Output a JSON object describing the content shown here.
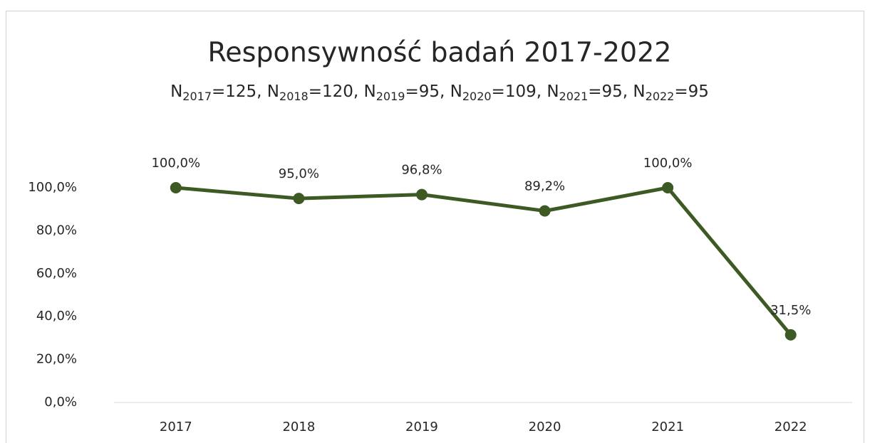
{
  "chart_data": {
    "type": "line",
    "title": "Responsywność badań 2017-2022",
    "subtitle": [
      {
        "text": "N"
      },
      {
        "sub": "2017"
      },
      {
        "text": "=125, N"
      },
      {
        "sub": "2018"
      },
      {
        "text": "=120, N"
      },
      {
        "sub": "2019"
      },
      {
        "text": "=95, N"
      },
      {
        "sub": "2020"
      },
      {
        "text": "=109, N"
      },
      {
        "sub": "2021"
      },
      {
        "text": "=95, N"
      },
      {
        "sub": "2022"
      },
      {
        "text": "=95"
      }
    ],
    "categories": [
      "2017",
      "2018",
      "2019",
      "2020",
      "2021",
      "2022"
    ],
    "series": [
      {
        "color": "#3d5a24",
        "values": [
          100,
          95,
          96.8,
          89.2,
          100,
          31.5
        ],
        "value_labels": [
          "100,0%",
          "95,0%",
          "96,8%",
          "89,2%",
          "100,0%",
          "31,5%"
        ]
      }
    ],
    "ylim": [
      0,
      100
    ],
    "yticks": [
      {
        "value": 0,
        "label": "0,0%"
      },
      {
        "value": 20,
        "label": "20,0%"
      },
      {
        "value": 40,
        "label": "40,0%"
      },
      {
        "value": 60,
        "label": "60,0%"
      },
      {
        "value": 80,
        "label": "80,0%"
      },
      {
        "value": 100,
        "label": "100,0%"
      }
    ],
    "grid": false
  }
}
